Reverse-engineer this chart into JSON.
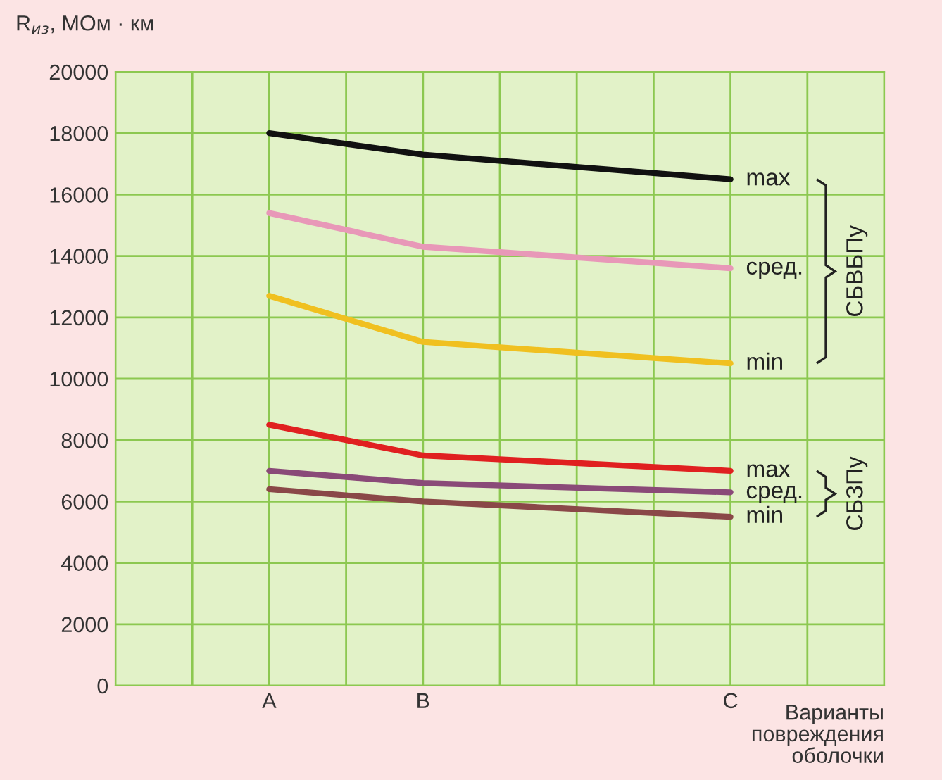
{
  "chart_data": {
    "type": "line",
    "ylabel": "R$_{из}$, МОм · км",
    "xlabel": "Варианты\nповреждения\nоболочки",
    "categories": [
      null,
      null,
      "A",
      null,
      "B",
      null,
      null,
      null,
      "C",
      null,
      null
    ],
    "ylim": [
      0,
      20000
    ],
    "yticks": [
      0,
      2000,
      4000,
      6000,
      8000,
      10000,
      12000,
      14000,
      16000,
      18000,
      20000
    ],
    "grid": true,
    "marker": "none",
    "line_style": "solid",
    "series": [
      {
        "name": "max",
        "color": "#111111",
        "values": [
          null,
          null,
          18000,
          null,
          17300,
          null,
          null,
          null,
          16500,
          null,
          null
        ]
      },
      {
        "name": "сред.",
        "color": "#e898b8",
        "values": [
          null,
          null,
          15400,
          null,
          14300,
          null,
          null,
          null,
          13600,
          null,
          null
        ]
      },
      {
        "name": "min",
        "color": "#f0c020",
        "values": [
          null,
          null,
          12700,
          null,
          11200,
          null,
          null,
          null,
          10500,
          null,
          null
        ]
      },
      {
        "name": "max",
        "color": "#e02020",
        "values": [
          null,
          null,
          8500,
          null,
          7500,
          null,
          null,
          null,
          7000,
          null,
          null
        ]
      },
      {
        "name": "сред.",
        "color": "#8a4a78",
        "values": [
          null,
          null,
          7000,
          null,
          6600,
          null,
          null,
          null,
          6300,
          null,
          null
        ]
      },
      {
        "name": "min",
        "color": "#8a4848",
        "values": [
          null,
          null,
          6400,
          null,
          6000,
          null,
          null,
          null,
          5500,
          null,
          null
        ]
      }
    ],
    "annotations": [
      "СБВБПу",
      "СБЗПу"
    ]
  }
}
